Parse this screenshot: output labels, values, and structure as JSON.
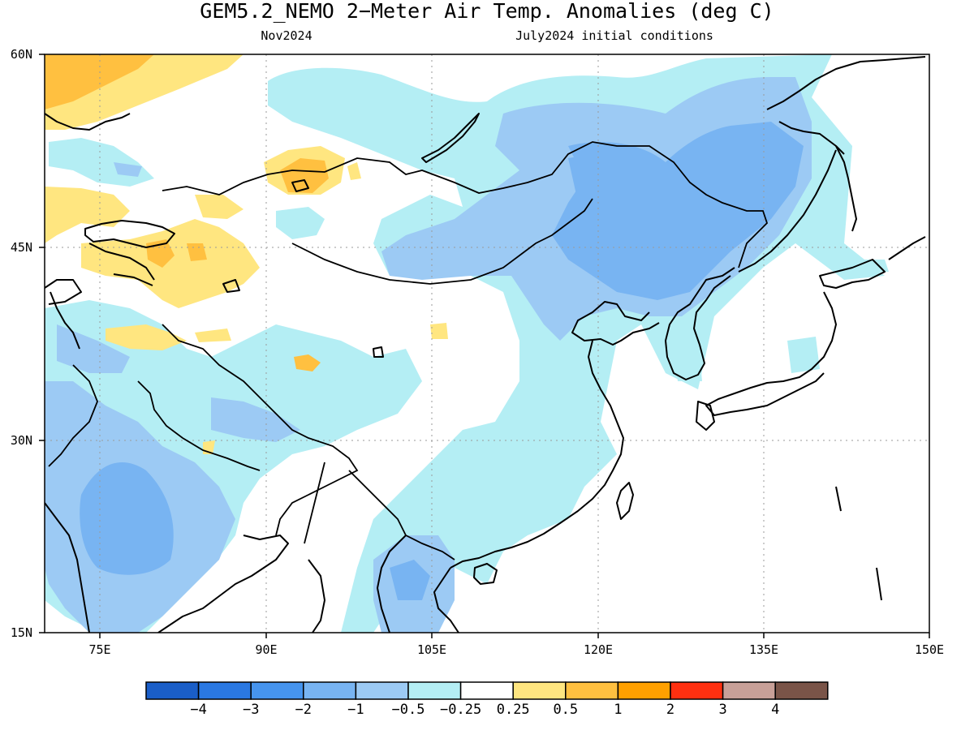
{
  "title": "GEM5.2_NEMO 2−Meter Air Temp. Anomalies (deg C)",
  "subtitle_left": "Nov2024",
  "subtitle_right": "July2024 initial conditions",
  "map": {
    "lat_ticks": [
      "60N",
      "45N",
      "30N",
      "15N"
    ],
    "lon_ticks": [
      "75E",
      "90E",
      "105E",
      "120E",
      "135E",
      "150E"
    ]
  },
  "legend": {
    "colors": [
      "#1a5ec8",
      "#2a78e2",
      "#4694ee",
      "#78b4f2",
      "#9ccaf4",
      "#b4eef4",
      "#ffffff",
      "#ffe680",
      "#ffc040",
      "#ffa000",
      "#ff3010",
      "#c8a098",
      "#7a5448"
    ],
    "labels": [
      "−4",
      "−3",
      "−2",
      "−1",
      "−0.5",
      "−0.25",
      "0.25",
      "0.5",
      "1",
      "2",
      "3",
      "4"
    ]
  }
}
